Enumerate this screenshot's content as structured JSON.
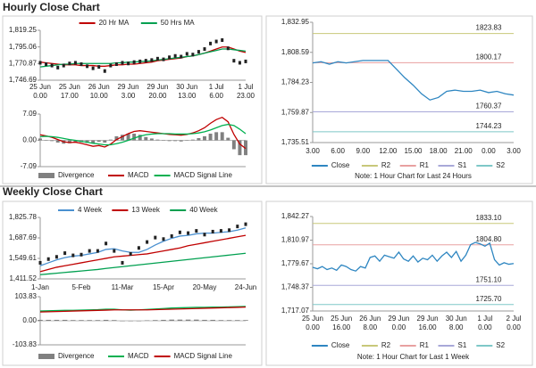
{
  "titles": [
    "Hourly Close Chart",
    "Weekly Close Chart"
  ],
  "chart_data": [
    {
      "type": "line",
      "ylim": [
        1746.69,
        1819.25
      ],
      "yticks": [
        {
          "value": 1746.69,
          "label": "1,746.69"
        },
        {
          "value": 1770.87,
          "label": "1,770.87"
        },
        {
          "value": 1795.06,
          "label": "1,795.06"
        },
        {
          "value": 1819.25,
          "label": "1,819.25"
        }
      ],
      "categories": [
        [
          "25 Jun",
          "0.00"
        ],
        null,
        null,
        null,
        null,
        [
          "25 Jun",
          "17.00"
        ],
        null,
        null,
        null,
        null,
        [
          "26 Jun",
          "10.00"
        ],
        null,
        null,
        null,
        null,
        [
          "29 Jun",
          "3.00"
        ],
        null,
        null,
        null,
        null,
        [
          "29 Jun",
          "20.00"
        ],
        null,
        null,
        null,
        null,
        [
          "30 Jun",
          "13.00"
        ],
        null,
        null,
        null,
        null,
        [
          "1 Jul",
          "6.00"
        ],
        null,
        null,
        null,
        null,
        [
          "1 Jul",
          "23.00"
        ]
      ],
      "close": [
        1772,
        1770,
        1768,
        1765,
        1768,
        1771,
        1772,
        1770,
        1767,
        1764,
        1766,
        1760,
        1768,
        1770,
        1772,
        1771,
        1773,
        1774,
        1775,
        1776,
        1778,
        1777,
        1780,
        1782,
        1781,
        1785,
        1784,
        1788,
        1792,
        1800,
        1803,
        1805,
        1793,
        1775,
        1772,
        1774
      ],
      "close_color": "#222222",
      "series": [
        {
          "name": "20 Hr MA",
          "color": "#c00000",
          "values": [
            1773,
            1772,
            1771,
            1770,
            1769,
            1769,
            1769,
            1768,
            1768,
            1768,
            1767,
            1767,
            1768,
            1769,
            1769,
            1770,
            1770,
            1771,
            1772,
            1773,
            1775,
            1776,
            1777,
            1778,
            1779,
            1781,
            1782,
            1784,
            1786,
            1789,
            1792,
            1795,
            1795,
            1792,
            1789,
            1787
          ]
        },
        {
          "name": "50 Hrs MA",
          "color": "#00a050",
          "values": [
            1766,
            1767,
            1768,
            1769,
            1770,
            1770,
            1771,
            1771,
            1771,
            1771,
            1771,
            1771,
            1771,
            1772,
            1772,
            1773,
            1773,
            1774,
            1774,
            1775,
            1776,
            1777,
            1778,
            1779,
            1780,
            1781,
            1782,
            1784,
            1786,
            1788,
            1790,
            1792,
            1792,
            1791,
            1790,
            1789
          ]
        }
      ]
    },
    {
      "type": "line",
      "ylim": [
        -7.09,
        7.09
      ],
      "yticks": [
        -7.09,
        {
          "value": 0,
          "label": "0.00"
        },
        7.09
      ],
      "series": [
        {
          "name": "Divergence",
          "color": "#808080",
          "style": "bar",
          "values": [
            0.5,
            0.1,
            -0.2,
            -0.6,
            -0.9,
            -0.8,
            -0.5,
            -0.5,
            -0.7,
            -0.8,
            -0.4,
            -0.6,
            0.2,
            1.1,
            1.5,
            1.8,
            1.8,
            1.5,
            0.9,
            0.5,
            0.2,
            0.0,
            -0.2,
            -0.2,
            -0.3,
            -0.1,
            0.2,
            0.6,
            1.1,
            1.8,
            2.2,
            2.2,
            0.7,
            -2.4,
            -4.0,
            -4.0
          ]
        },
        {
          "name": "MACD",
          "color": "#c00000",
          "values": [
            1.5,
            1.2,
            0.8,
            0.2,
            -0.4,
            -0.6,
            -0.5,
            -0.8,
            -1.2,
            -1.6,
            -1.4,
            -1.8,
            -1.0,
            0.2,
            1.0,
            1.8,
            2.4,
            2.6,
            2.4,
            2.2,
            2.0,
            1.8,
            1.6,
            1.5,
            1.4,
            1.6,
            2.0,
            2.6,
            3.4,
            4.6,
            5.6,
            6.2,
            5.0,
            1.6,
            -1.0,
            -2.2
          ]
        },
        {
          "name": "MACD Signal Line",
          "color": "#00b050",
          "values": [
            1.0,
            1.1,
            1.0,
            0.8,
            0.5,
            0.2,
            0.0,
            -0.3,
            -0.5,
            -0.8,
            -1.0,
            -1.2,
            -1.2,
            -0.9,
            -0.5,
            0.0,
            0.6,
            1.1,
            1.5,
            1.7,
            1.8,
            1.8,
            1.8,
            1.7,
            1.7,
            1.7,
            1.8,
            2.0,
            2.3,
            2.8,
            3.4,
            4.0,
            4.3,
            4.0,
            3.0,
            1.8
          ]
        }
      ]
    },
    {
      "type": "line",
      "ylim": [
        1735.51,
        1832.95
      ],
      "yticks": [
        {
          "value": 1735.51,
          "label": "1,735.51"
        },
        {
          "value": 1759.87,
          "label": "1,759.87"
        },
        {
          "value": 1784.23,
          "label": "1,784.23"
        },
        {
          "value": 1808.59,
          "label": "1,808.59"
        },
        {
          "value": 1832.95,
          "label": "1,832.95"
        }
      ],
      "categories": [
        "3.00",
        null,
        null,
        "6.00",
        null,
        null,
        "9.00",
        null,
        null,
        "12.00",
        null,
        null,
        "15.00",
        null,
        null,
        "18.00",
        null,
        null,
        "21.00",
        null,
        null,
        "0.00",
        null,
        null,
        "3.00"
      ],
      "series": [
        {
          "name": "Close",
          "color": "#2e86c1",
          "values": [
            1800,
            1801,
            1799,
            1801,
            1800,
            1801,
            1802,
            1802,
            1802,
            1802,
            1795,
            1788,
            1782,
            1775,
            1770,
            1772,
            1777,
            1778,
            1777,
            1777,
            1778,
            1776,
            1777,
            1775,
            1774
          ]
        }
      ],
      "levels": [
        {
          "name": "R2",
          "value": 1823.83,
          "label": "1823.83",
          "color": "#c8c87a"
        },
        {
          "name": "R1",
          "value": 1800.17,
          "label": "1800.17",
          "color": "#e8a0a0"
        },
        {
          "name": "S1",
          "value": 1760.37,
          "label": "1760.37",
          "color": "#a8a8d8"
        },
        {
          "name": "S2",
          "value": 1744.23,
          "label": "1744.23",
          "color": "#7ec8c8"
        }
      ],
      "note": "Note: 1 Hour Chart for Last 24 Hours"
    },
    {
      "type": "line",
      "ylim": [
        1411.52,
        1825.78
      ],
      "yticks": [
        {
          "value": 1411.52,
          "label": "1,411.52"
        },
        {
          "value": 1549.61,
          "label": "1,549.61"
        },
        {
          "value": 1687.69,
          "label": "1,687.69"
        },
        {
          "value": 1825.78,
          "label": "1,825.78"
        }
      ],
      "categories": [
        "1-Jan",
        null,
        null,
        null,
        null,
        "5-Feb",
        null,
        null,
        null,
        null,
        "11-Mar",
        null,
        null,
        null,
        null,
        "15-Apr",
        null,
        null,
        null,
        null,
        "20-May",
        null,
        null,
        null,
        null,
        "24-Jun"
      ],
      "close": [
        1520,
        1545,
        1560,
        1585,
        1570,
        1575,
        1600,
        1600,
        1650,
        1600,
        1520,
        1580,
        1620,
        1660,
        1690,
        1680,
        1700,
        1725,
        1720,
        1735,
        1710,
        1730,
        1735,
        1740,
        1765,
        1780
      ],
      "close_color": "#222222",
      "series": [
        {
          "name": "4 Week",
          "color": "#4a90d0",
          "values": [
            1500,
            1520,
            1540,
            1555,
            1565,
            1570,
            1580,
            1590,
            1610,
            1615,
            1600,
            1590,
            1590,
            1610,
            1640,
            1665,
            1685,
            1700,
            1705,
            1715,
            1720,
            1720,
            1725,
            1730,
            1740,
            1755
          ]
        },
        {
          "name": "13 Week",
          "color": "#c00000",
          "values": [
            1460,
            1475,
            1490,
            1500,
            1510,
            1520,
            1530,
            1540,
            1550,
            1560,
            1565,
            1570,
            1575,
            1580,
            1590,
            1600,
            1610,
            1620,
            1635,
            1645,
            1655,
            1665,
            1675,
            1685,
            1695,
            1705
          ]
        },
        {
          "name": "40 Week",
          "color": "#00a050",
          "values": [
            1440,
            1445,
            1450,
            1455,
            1460,
            1465,
            1470,
            1475,
            1482,
            1488,
            1494,
            1500,
            1506,
            1512,
            1518,
            1524,
            1530,
            1536,
            1542,
            1548,
            1554,
            1560,
            1566,
            1572,
            1578,
            1584
          ]
        }
      ]
    },
    {
      "type": "line",
      "ylim": [
        -103.83,
        103.83
      ],
      "yticks": [
        -103.83,
        {
          "value": 0,
          "label": "0.00"
        },
        103.83
      ],
      "series": [
        {
          "name": "Divergence",
          "color": "#808080",
          "style": "bar",
          "values": [
            4,
            4,
            4,
            4,
            3,
            3,
            3,
            3,
            4,
            3,
            0,
            -1,
            0,
            2,
            3,
            4,
            5,
            5,
            5,
            5,
            4,
            4,
            3,
            3,
            3,
            3
          ]
        },
        {
          "name": "MACD",
          "color": "#00b050",
          "values": [
            42,
            43,
            44,
            45,
            45,
            46,
            47,
            48,
            50,
            50,
            47,
            46,
            47,
            49,
            51,
            53,
            55,
            56,
            57,
            58,
            58,
            59,
            59,
            60,
            61,
            62
          ]
        },
        {
          "name": "MACD Signal Line",
          "color": "#c00000",
          "values": [
            38,
            39,
            40,
            41,
            42,
            43,
            44,
            45,
            46,
            47,
            47,
            47,
            47,
            47,
            48,
            49,
            50,
            51,
            52,
            53,
            54,
            55,
            56,
            57,
            58,
            59
          ]
        }
      ]
    },
    {
      "type": "line",
      "ylim": [
        1717.07,
        1842.27
      ],
      "yticks": [
        {
          "value": 1717.07,
          "label": "1,717.07"
        },
        {
          "value": 1748.37,
          "label": "1,748.37"
        },
        {
          "value": 1779.67,
          "label": "1,779.67"
        },
        {
          "value": 1810.97,
          "label": "1,810.97"
        },
        {
          "value": 1842.27,
          "label": "1,842.27"
        }
      ],
      "categories": [
        [
          "25 Jun",
          "0.00"
        ],
        null,
        null,
        null,
        null,
        null,
        [
          "25 Jun",
          "16.00"
        ],
        null,
        null,
        null,
        null,
        null,
        [
          "26 Jun",
          "8.00"
        ],
        null,
        null,
        null,
        null,
        null,
        [
          "29 Jun",
          "0.00"
        ],
        null,
        null,
        null,
        null,
        null,
        [
          "29 Jun",
          "16.00"
        ],
        null,
        null,
        null,
        null,
        null,
        [
          "30 Jun",
          "8.00"
        ],
        null,
        null,
        null,
        null,
        null,
        [
          "1 Jul",
          "0.00"
        ],
        null,
        null,
        null,
        null,
        null,
        [
          "2 Jul",
          "0.00"
        ]
      ],
      "series": [
        {
          "name": "Close",
          "color": "#2e86c1",
          "values": [
            1775,
            1773,
            1776,
            1772,
            1774,
            1771,
            1778,
            1776,
            1772,
            1770,
            1776,
            1774,
            1788,
            1790,
            1783,
            1791,
            1789,
            1787,
            1795,
            1786,
            1783,
            1790,
            1782,
            1787,
            1785,
            1791,
            1783,
            1790,
            1795,
            1788,
            1796,
            1783,
            1791,
            1805,
            1808,
            1806,
            1803,
            1807,
            1785,
            1778,
            1781,
            1779,
            1780
          ]
        }
      ],
      "levels": [
        {
          "name": "R2",
          "value": 1833.1,
          "label": "1833.10",
          "color": "#c8c87a"
        },
        {
          "name": "R1",
          "value": 1804.8,
          "label": "1804.80",
          "color": "#e8a0a0"
        },
        {
          "name": "S1",
          "value": 1751.1,
          "label": "1751.10",
          "color": "#a8a8d8"
        },
        {
          "name": "S2",
          "value": 1725.7,
          "label": "1725.70",
          "color": "#7ec8c8"
        }
      ],
      "note": "Note: 1 Hour Chart for Last 1 Week"
    }
  ]
}
